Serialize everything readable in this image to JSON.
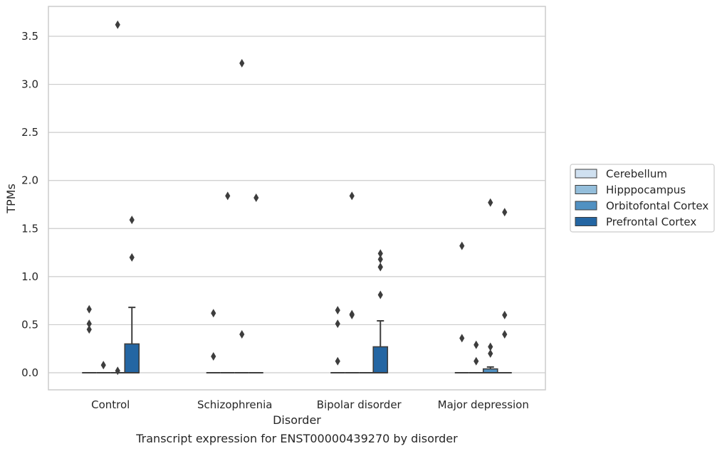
{
  "chart_data": {
    "type": "box",
    "title": "",
    "caption": "Transcript expression for ENST00000439270 by disorder",
    "xlabel": "Disorder",
    "ylabel": "TPMs",
    "ylim": [
      -0.18,
      3.78
    ],
    "yticks": [
      0.0,
      0.5,
      1.0,
      1.5,
      2.0,
      2.5,
      3.0,
      3.5
    ],
    "ytick_labels": [
      "0.0",
      "0.5",
      "1.0",
      "1.5",
      "2.0",
      "2.5",
      "3.0",
      "3.5"
    ],
    "grid": "horizontal",
    "legend_position": "right",
    "categories": [
      "Control",
      "Schizophrenia",
      "Bipolar disorder",
      "Major depression"
    ],
    "series": [
      {
        "name": "Cerebellum",
        "color": "#cfe0f0",
        "boxes": [
          {
            "q1": 0,
            "median": 0,
            "q3": 0,
            "whisker_low": 0,
            "whisker_high": 0,
            "outliers": [
              0.66,
              0.51,
              0.45
            ]
          },
          {
            "q1": 0,
            "median": 0,
            "q3": 0,
            "whisker_low": 0,
            "whisker_high": 0,
            "outliers": [
              0.62,
              0.17
            ]
          },
          {
            "q1": 0,
            "median": 0,
            "q3": 0,
            "whisker_low": 0,
            "whisker_high": 0,
            "outliers": [
              0.65,
              0.51,
              0.12
            ]
          },
          {
            "q1": 0,
            "median": 0,
            "q3": 0,
            "whisker_low": 0,
            "whisker_high": 0,
            "outliers": [
              1.32,
              0.36
            ]
          }
        ]
      },
      {
        "name": "Hipppocampus",
        "color": "#94bedb",
        "boxes": [
          {
            "q1": 0,
            "median": 0,
            "q3": 0,
            "whisker_low": 0,
            "whisker_high": 0,
            "outliers": [
              0.08
            ]
          },
          {
            "q1": 0,
            "median": 0,
            "q3": 0,
            "whisker_low": 0,
            "whisker_high": 0,
            "outliers": [
              1.84
            ]
          },
          {
            "q1": 0,
            "median": 0,
            "q3": 0,
            "whisker_low": 0,
            "whisker_high": 0,
            "outliers": [
              1.84,
              0.61,
              0.6
            ]
          },
          {
            "q1": 0,
            "median": 0,
            "q3": 0,
            "whisker_low": 0,
            "whisker_high": 0,
            "outliers": [
              0.29,
              0.12
            ]
          }
        ]
      },
      {
        "name": "Orbitofontal Cortex",
        "color": "#5191c2",
        "boxes": [
          {
            "q1": 0,
            "median": 0,
            "q3": 0,
            "whisker_low": 0,
            "whisker_high": 0,
            "outliers": [
              3.62,
              0.02
            ]
          },
          {
            "q1": 0,
            "median": 0,
            "q3": 0,
            "whisker_low": 0,
            "whisker_high": 0,
            "outliers": [
              3.22,
              0.4
            ]
          },
          {
            "q1": 0,
            "median": 0,
            "q3": 0,
            "whisker_low": 0,
            "whisker_high": 0,
            "outliers": []
          },
          {
            "q1": 0,
            "median": 0,
            "q3": 0.04,
            "whisker_low": 0,
            "whisker_high": 0.06,
            "outliers": [
              1.77,
              0.27,
              0.2
            ]
          }
        ]
      },
      {
        "name": "Prefrontal Cortex",
        "color": "#2466a3",
        "boxes": [
          {
            "q1": 0,
            "median": 0,
            "q3": 0.3,
            "whisker_low": 0,
            "whisker_high": 0.68,
            "outliers": [
              1.59,
              1.2
            ]
          },
          {
            "q1": 0,
            "median": 0,
            "q3": 0,
            "whisker_low": 0,
            "whisker_high": 0,
            "outliers": [
              1.82
            ]
          },
          {
            "q1": 0,
            "median": 0,
            "q3": 0.27,
            "whisker_low": 0,
            "whisker_high": 0.54,
            "outliers": [
              1.24,
              1.18,
              1.1,
              1.1,
              0.81
            ]
          },
          {
            "q1": 0,
            "median": 0,
            "q3": 0,
            "whisker_low": 0,
            "whisker_high": 0,
            "outliers": [
              1.67,
              0.6,
              0.4
            ]
          }
        ]
      }
    ]
  }
}
